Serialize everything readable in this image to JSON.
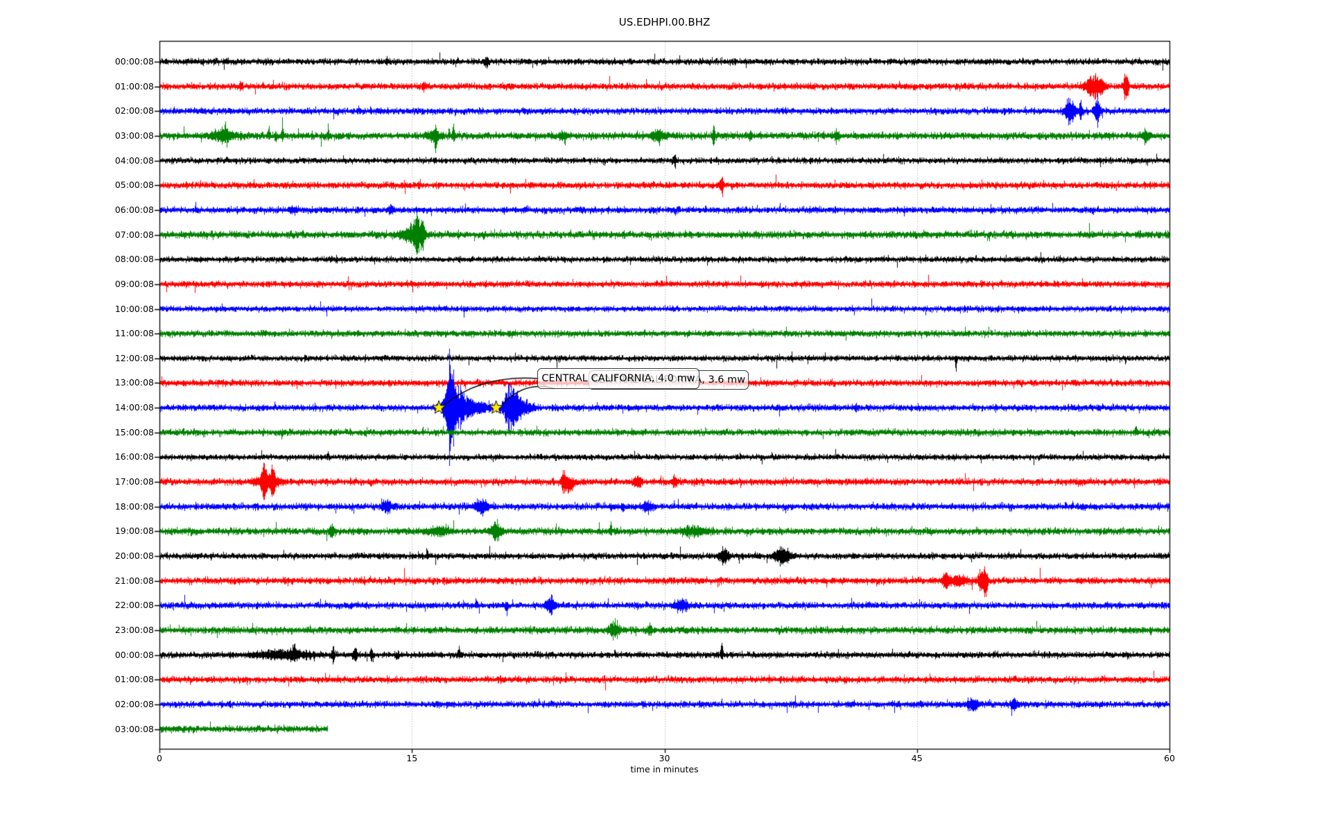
{
  "title": "US.EDHPI.00.BHZ",
  "axis": {
    "xlabel": "time in minutes",
    "xmin": 0,
    "xmax": 60,
    "xticks": [
      0,
      15,
      30,
      45,
      60
    ],
    "gridline_minutes": [
      15,
      30,
      45
    ]
  },
  "annotations": {
    "boxes": [
      {
        "text": "CENTRAL CALIFORNIA, 4.0 mw"
      },
      {
        "text": "CENTRAL CALIFORNIA, 3.6 mw"
      }
    ],
    "event_row_label": "14:00:08",
    "marker_minutes": [
      16.6,
      20.0
    ],
    "marker_color": "#ffe900"
  },
  "palette": {
    "trace_black": "#000000",
    "trace_red": "#ff0000",
    "trace_blue": "#0000ff",
    "trace_green": "#008000",
    "gridline": "#999999",
    "axis": "#000000"
  },
  "chart_data": {
    "type": "line",
    "subtype": "seismogram-day-plot",
    "title": "US.EDHPI.00.BHZ",
    "xlabel": "time in minutes",
    "xlim": [
      0,
      60
    ],
    "rows": [
      {
        "label": "00:00:08",
        "color": "#000000",
        "base": 3.8,
        "end": 60,
        "events": [
          {
            "m": 13.5,
            "w": 0.06,
            "a": 4,
            "d": 0
          },
          {
            "m": 19.4,
            "w": 0.07,
            "a": 7,
            "d": 0
          }
        ]
      },
      {
        "label": "01:00:08",
        "color": "#ff0000",
        "base": 4.0,
        "end": 60,
        "events": [
          {
            "m": 4.8,
            "w": 0.06,
            "a": 5,
            "d": 0
          },
          {
            "m": 15.7,
            "w": 0.05,
            "a": 9,
            "d": 0
          },
          {
            "m": 55.5,
            "w": 0.35,
            "a": 15,
            "d": 0
          },
          {
            "m": 55.9,
            "w": 0.08,
            "a": 10,
            "d": 0
          },
          {
            "m": 57.4,
            "w": 0.1,
            "a": 20,
            "d": 0
          }
        ]
      },
      {
        "label": "02:00:08",
        "color": "#0000ff",
        "base": 4.0,
        "end": 60,
        "events": [
          {
            "m": 54.1,
            "w": 0.2,
            "a": 20,
            "d": 0
          },
          {
            "m": 54.7,
            "w": 0.07,
            "a": 12,
            "d": 0
          },
          {
            "m": 55.7,
            "w": 0.12,
            "a": 21,
            "d": 0
          }
        ]
      },
      {
        "label": "03:00:08",
        "color": "#008000",
        "base": 4.4,
        "end": 60,
        "events": [
          {
            "m": 3.8,
            "w": 0.5,
            "a": 7,
            "d": 0
          },
          {
            "m": 3.9,
            "w": 0.05,
            "a": 13,
            "d": 1
          },
          {
            "m": 6.5,
            "w": 0.04,
            "a": 18,
            "d": 1
          },
          {
            "m": 6.9,
            "w": 0.05,
            "a": 12,
            "d": -1
          },
          {
            "m": 7.3,
            "w": 0.04,
            "a": 17,
            "d": 1
          },
          {
            "m": 10.0,
            "w": 0.04,
            "a": 11,
            "d": 1
          },
          {
            "m": 16.3,
            "w": 0.3,
            "a": 7,
            "d": 0
          },
          {
            "m": 16.4,
            "w": 0.04,
            "a": 27,
            "d": -1
          },
          {
            "m": 17.2,
            "w": 0.03,
            "a": 10,
            "d": 1
          },
          {
            "m": 17.45,
            "w": 0.04,
            "a": 22,
            "d": 1
          },
          {
            "m": 24.0,
            "w": 0.15,
            "a": 6,
            "d": 0
          },
          {
            "m": 29.6,
            "w": 0.3,
            "a": 8,
            "d": 0
          },
          {
            "m": 32.9,
            "w": 0.05,
            "a": 11,
            "d": 0
          },
          {
            "m": 35.1,
            "w": 0.05,
            "a": 9,
            "d": 0
          },
          {
            "m": 40.2,
            "w": 0.1,
            "a": 8,
            "d": 0
          },
          {
            "m": 58.6,
            "w": 0.15,
            "a": 9,
            "d": 0
          }
        ]
      },
      {
        "label": "04:00:08",
        "color": "#000000",
        "base": 3.6,
        "end": 60,
        "events": [
          {
            "m": 30.6,
            "w": 0.05,
            "a": 9,
            "d": 0
          }
        ]
      },
      {
        "label": "05:00:08",
        "color": "#ff0000",
        "base": 4.0,
        "end": 60,
        "events": [
          {
            "m": 33.4,
            "w": 0.08,
            "a": 9,
            "d": 0
          }
        ]
      },
      {
        "label": "06:00:08",
        "color": "#0000ff",
        "base": 4.0,
        "end": 60,
        "events": [
          {
            "m": 7.9,
            "w": 0.15,
            "a": 5,
            "d": 0
          },
          {
            "m": 13.7,
            "w": 0.1,
            "a": 5,
            "d": 0
          }
        ]
      },
      {
        "label": "07:00:08",
        "color": "#008000",
        "base": 4.4,
        "end": 60,
        "events": [
          {
            "m": 14.9,
            "w": 0.5,
            "a": 8,
            "d": 0
          },
          {
            "m": 15.25,
            "w": 0.12,
            "a": 24,
            "d": 0
          },
          {
            "m": 15.6,
            "w": 0.1,
            "a": 16,
            "d": 0
          }
        ]
      },
      {
        "label": "08:00:08",
        "color": "#000000",
        "base": 3.6,
        "end": 60,
        "events": []
      },
      {
        "label": "09:00:08",
        "color": "#ff0000",
        "base": 3.9,
        "end": 60,
        "events": []
      },
      {
        "label": "10:00:08",
        "color": "#0000ff",
        "base": 3.6,
        "end": 60,
        "events": []
      },
      {
        "label": "11:00:08",
        "color": "#008000",
        "base": 3.9,
        "end": 60,
        "events": []
      },
      {
        "label": "12:00:08",
        "color": "#000000",
        "base": 3.6,
        "end": 60,
        "events": [
          {
            "m": 47.3,
            "w": 0.04,
            "a": 11,
            "d": -1
          }
        ]
      },
      {
        "label": "13:00:08",
        "color": "#ff0000",
        "base": 4.0,
        "end": 60,
        "events": []
      },
      {
        "label": "14:00:08",
        "color": "#0000ff",
        "base": 4.0,
        "end": 60,
        "events": [
          {
            "m": 17.25,
            "w": 0.16,
            "a": 64,
            "d": 0
          },
          {
            "m": 17.55,
            "w": 0.45,
            "a": 24,
            "d": 0
          },
          {
            "m": 18.6,
            "w": 0.8,
            "a": 9,
            "d": 0
          },
          {
            "m": 20.9,
            "w": 0.28,
            "a": 36,
            "d": 0
          },
          {
            "m": 21.6,
            "w": 0.4,
            "a": 9,
            "d": 0
          }
        ]
      },
      {
        "label": "15:00:08",
        "color": "#008000",
        "base": 4.0,
        "end": 60,
        "events": [
          {
            "m": 58.0,
            "w": 0.04,
            "a": 13,
            "d": 1
          },
          {
            "m": 58.7,
            "w": 0.05,
            "a": 7,
            "d": -1
          }
        ]
      },
      {
        "label": "16:00:08",
        "color": "#000000",
        "base": 3.6,
        "end": 60,
        "events": []
      },
      {
        "label": "17:00:08",
        "color": "#ff0000",
        "base": 4.1,
        "end": 60,
        "events": [
          {
            "m": 6.2,
            "w": 0.1,
            "a": 22,
            "d": 0
          },
          {
            "m": 6.45,
            "w": 0.45,
            "a": 11,
            "d": 0
          },
          {
            "m": 6.7,
            "w": 0.07,
            "a": 19,
            "d": 0
          },
          {
            "m": 24.0,
            "w": 0.1,
            "a": 12,
            "d": 0
          },
          {
            "m": 24.35,
            "w": 0.22,
            "a": 15,
            "d": -1
          },
          {
            "m": 28.4,
            "w": 0.15,
            "a": 8,
            "d": 0
          },
          {
            "m": 30.6,
            "w": 0.1,
            "a": 8,
            "d": 0
          }
        ]
      },
      {
        "label": "18:00:08",
        "color": "#0000ff",
        "base": 4.2,
        "end": 60,
        "events": [
          {
            "m": 13.5,
            "w": 0.2,
            "a": 8,
            "d": 0
          },
          {
            "m": 19.1,
            "w": 0.25,
            "a": 11,
            "d": 0
          },
          {
            "m": 27.5,
            "w": 0.06,
            "a": 12,
            "d": -1
          },
          {
            "m": 29.0,
            "w": 0.2,
            "a": 7,
            "d": 0
          }
        ]
      },
      {
        "label": "19:00:08",
        "color": "#008000",
        "base": 4.2,
        "end": 60,
        "events": [
          {
            "m": 10.2,
            "w": 0.1,
            "a": 8,
            "d": 0
          },
          {
            "m": 16.6,
            "w": 0.5,
            "a": 5,
            "d": 0
          },
          {
            "m": 20.0,
            "w": 0.22,
            "a": 13,
            "d": 0
          },
          {
            "m": 26.8,
            "w": 0.05,
            "a": 16,
            "d": 1
          },
          {
            "m": 31.8,
            "w": 0.5,
            "a": 6,
            "d": 0
          }
        ]
      },
      {
        "label": "20:00:08",
        "color": "#000000",
        "base": 3.8,
        "end": 60,
        "events": [
          {
            "m": 15.9,
            "w": 0.04,
            "a": 18,
            "d": 1
          },
          {
            "m": 33.5,
            "w": 0.2,
            "a": 10,
            "d": 0
          },
          {
            "m": 37.0,
            "w": 0.3,
            "a": 13,
            "d": 0
          }
        ]
      },
      {
        "label": "21:00:08",
        "color": "#ff0000",
        "base": 4.2,
        "end": 60,
        "events": [
          {
            "m": 46.7,
            "w": 0.15,
            "a": 13,
            "d": 0
          },
          {
            "m": 47.5,
            "w": 0.3,
            "a": 7,
            "d": 0
          },
          {
            "m": 48.9,
            "w": 0.18,
            "a": 18,
            "d": 0
          },
          {
            "m": 49.1,
            "w": 0.05,
            "a": 24,
            "d": -1
          }
        ]
      },
      {
        "label": "22:00:08",
        "color": "#0000ff",
        "base": 4.0,
        "end": 60,
        "events": [
          {
            "m": 18.8,
            "w": 0.05,
            "a": 13,
            "d": 1
          },
          {
            "m": 20.6,
            "w": 0.06,
            "a": 15,
            "d": -1
          },
          {
            "m": 23.2,
            "w": 0.2,
            "a": 12,
            "d": 0
          },
          {
            "m": 31.0,
            "w": 0.3,
            "a": 8,
            "d": 0
          }
        ]
      },
      {
        "label": "23:00:08",
        "color": "#008000",
        "base": 4.2,
        "end": 60,
        "events": [
          {
            "m": 27.0,
            "w": 0.2,
            "a": 12,
            "d": 0
          },
          {
            "m": 29.1,
            "w": 0.1,
            "a": 7,
            "d": 0
          }
        ]
      },
      {
        "label": "00:00:08",
        "color": "#000000",
        "base": 3.8,
        "end": 60,
        "events": [
          {
            "m": 7.5,
            "w": 1.2,
            "a": 6,
            "d": 0
          },
          {
            "m": 8.0,
            "w": 0.08,
            "a": 13,
            "d": 1
          },
          {
            "m": 10.3,
            "w": 0.06,
            "a": 12,
            "d": 0
          },
          {
            "m": 11.6,
            "w": 0.08,
            "a": 12,
            "d": 0
          },
          {
            "m": 12.6,
            "w": 0.05,
            "a": 10,
            "d": 0
          },
          {
            "m": 14.1,
            "w": 0.06,
            "a": 10,
            "d": -1
          },
          {
            "m": 17.8,
            "w": 0.05,
            "a": 16,
            "d": 1
          },
          {
            "m": 33.4,
            "w": 0.05,
            "a": 22,
            "d": 1
          }
        ]
      },
      {
        "label": "01:00:08",
        "color": "#ff0000",
        "base": 4.0,
        "end": 60,
        "events": []
      },
      {
        "label": "02:00:08",
        "color": "#0000ff",
        "base": 4.0,
        "end": 60,
        "events": [
          {
            "m": 48.3,
            "w": 0.25,
            "a": 8,
            "d": 0
          },
          {
            "m": 50.8,
            "w": 0.15,
            "a": 7,
            "d": 0
          }
        ]
      },
      {
        "label": "03:00:08",
        "color": "#008000",
        "base": 4.2,
        "end": 10,
        "events": []
      }
    ]
  }
}
